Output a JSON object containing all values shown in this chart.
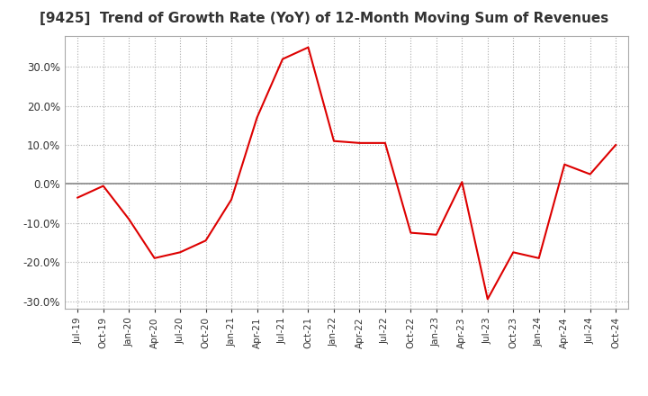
{
  "title": "[9425]  Trend of Growth Rate (YoY) of 12-Month Moving Sum of Revenues",
  "title_fontsize": 11,
  "line_color": "#dd0000",
  "background_color": "#ffffff",
  "grid_color": "#aaaaaa",
  "zero_line_color": "#888888",
  "border_color": "#aaaaaa",
  "ylim": [
    -32,
    38
  ],
  "yticks": [
    -30,
    -20,
    -10,
    0,
    10,
    20,
    30
  ],
  "x_labels": [
    "Jul-19",
    "Oct-19",
    "Jan-20",
    "Apr-20",
    "Jul-20",
    "Oct-20",
    "Jan-21",
    "Apr-21",
    "Jul-21",
    "Oct-21",
    "Jan-22",
    "Apr-22",
    "Jul-22",
    "Oct-22",
    "Jan-23",
    "Apr-23",
    "Jul-23",
    "Oct-23",
    "Jan-24",
    "Apr-24",
    "Jul-24",
    "Oct-24"
  ],
  "values": [
    -3.5,
    -0.5,
    -9.0,
    -19.0,
    -17.5,
    -14.5,
    -4.0,
    17.0,
    32.0,
    35.0,
    11.0,
    10.5,
    10.5,
    -12.5,
    -13.0,
    0.5,
    -29.5,
    -17.5,
    -19.0,
    5.0,
    2.5,
    10.0
  ]
}
